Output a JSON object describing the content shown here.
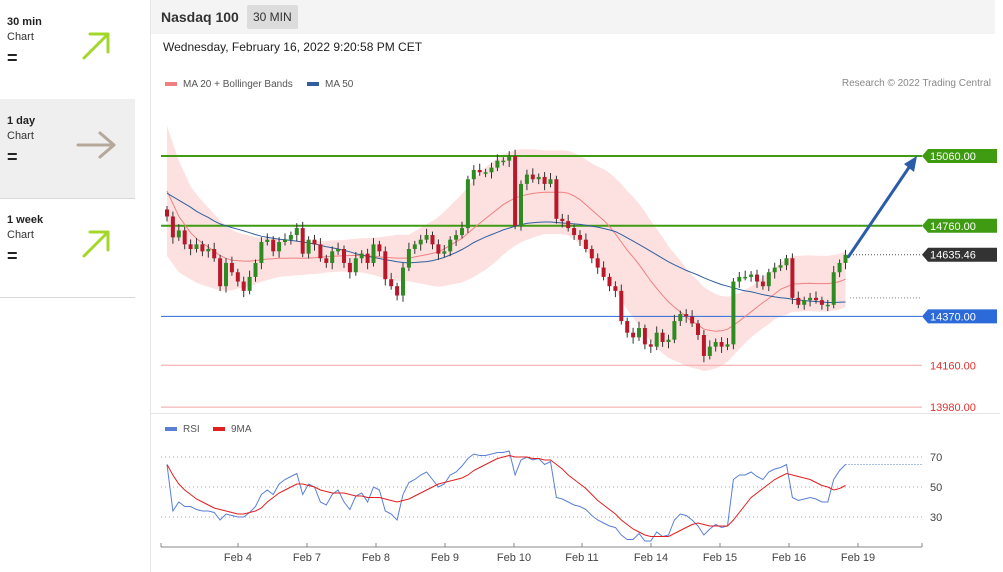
{
  "sidebar": {
    "items": [
      {
        "label": "30 min",
        "sub": "Chart",
        "eq": "=",
        "arrow": "up",
        "color": "#a3d82a",
        "selected": false
      },
      {
        "label": "1 day",
        "sub": "Chart",
        "eq": "=",
        "arrow": "right",
        "color": "#b5a89a",
        "selected": true
      },
      {
        "label": "1 week",
        "sub": "Chart",
        "eq": "=",
        "arrow": "up",
        "color": "#a3d82a",
        "selected": false
      }
    ]
  },
  "header": {
    "symbol": "Nasdaq 100",
    "period": "30 MIN"
  },
  "date_line": "Wednesday, February 16, 2022 9:20:58 PM CET",
  "legend_main": [
    {
      "label": "MA 20 + Bollinger Bands",
      "color": "#f08080"
    },
    {
      "label": "MA 50",
      "color": "#2f5f9e"
    }
  ],
  "copyright": "Research © 2022 Trading Central",
  "legend_rsi": [
    {
      "label": "RSI",
      "color": "#5a7fd6"
    },
    {
      "label": "9MA",
      "color": "#e02020"
    }
  ],
  "chart_data": [
    {
      "type": "candlestick",
      "x_ticks": [
        "Feb 4",
        "Feb 7",
        "Feb 8",
        "Feb 9",
        "Feb 10",
        "Feb 11",
        "Feb 14",
        "Feb 15",
        "Feb 16",
        "Feb 19"
      ],
      "levels": [
        {
          "value": 15060.0,
          "label": "15060.00",
          "color": "#3f9c12",
          "style": "resistance"
        },
        {
          "value": 14760.0,
          "label": "14760.00",
          "color": "#3f9c12",
          "style": "resistance"
        },
        {
          "value": 14635.46,
          "label": "14635.46",
          "color": "#333333",
          "style": "last"
        },
        {
          "value": 14370.0,
          "label": "14370.00",
          "color": "#2b6ad8",
          "style": "pivot"
        },
        {
          "value": 14160.0,
          "label": "14160.00",
          "color": "#e03030",
          "style": "support"
        },
        {
          "value": 13980.0,
          "label": "13980.00",
          "color": "#e03030",
          "style": "support"
        }
      ],
      "closes": [
        14800,
        14710,
        14740,
        14680,
        14660,
        14680,
        14650,
        14660,
        14620,
        14500,
        14600,
        14560,
        14520,
        14480,
        14540,
        14600,
        14690,
        14700,
        14650,
        14690,
        14700,
        14720,
        14750,
        14640,
        14700,
        14680,
        14620,
        14600,
        14650,
        14660,
        14600,
        14560,
        14620,
        14640,
        14600,
        14680,
        14650,
        14530,
        14500,
        14460,
        14580,
        14660,
        14680,
        14700,
        14720,
        14680,
        14640,
        14650,
        14700,
        14720,
        14750,
        14960,
        15000,
        14990,
        14990,
        15010,
        15040,
        15040,
        15060,
        14760,
        14940,
        14980,
        14960,
        14970,
        14940,
        14960,
        14790,
        14780,
        14750,
        14720,
        14700,
        14660,
        14620,
        14580,
        14540,
        14500,
        14480,
        14350,
        14300,
        14280,
        14320,
        14250,
        14240,
        14300,
        14260,
        14270,
        14350,
        14380,
        14370,
        14340,
        14290,
        14200,
        14240,
        14260,
        14240,
        14250,
        14520,
        14540,
        14540,
        14550,
        14520,
        14500,
        14560,
        14580,
        14590,
        14620,
        14450,
        14420,
        14440,
        14450,
        14440,
        14420,
        14420,
        14560,
        14600,
        14635.46
      ],
      "ma20": [
        14910,
        14855,
        14800,
        14765,
        14730,
        14705,
        14685,
        14668,
        14650,
        14632,
        14620,
        14612,
        14610,
        14608,
        14608,
        14610,
        14614,
        14617,
        14618,
        14620,
        14620,
        14621,
        14621,
        14620,
        14621,
        14622,
        14625,
        14627,
        14629,
        14630,
        14631,
        14632,
        14632,
        14633,
        14630,
        14628,
        14626,
        14624,
        14622,
        14621,
        14621,
        14621,
        14626,
        14631,
        14636,
        14641,
        14648,
        14661,
        14676,
        14691,
        14706,
        14728,
        14750,
        14771,
        14791,
        14811,
        14831,
        14851,
        14866,
        14879,
        14889,
        14894,
        14899,
        14902,
        14904,
        14904,
        14904,
        14904,
        14900,
        14888,
        14872,
        14850,
        14828,
        14805,
        14784,
        14757,
        14725,
        14690,
        14655,
        14625,
        14593,
        14558,
        14522,
        14491,
        14461,
        14432,
        14410,
        14390,
        14368,
        14348,
        14334,
        14315,
        14310,
        14306,
        14308,
        14315,
        14332,
        14350,
        14370,
        14390,
        14410,
        14430,
        14447,
        14467,
        14487,
        14497,
        14510,
        14510,
        14512,
        14513,
        14511,
        14511,
        14511,
        14514,
        14520,
        14530
      ],
      "ma50": [
        14900,
        14885,
        14870,
        14855,
        14840,
        14822,
        14808,
        14796,
        14780,
        14768,
        14760,
        14752,
        14745,
        14738,
        14730,
        14722,
        14715,
        14710,
        14706,
        14702,
        14700,
        14697,
        14694,
        14690,
        14686,
        14682,
        14676,
        14670,
        14665,
        14660,
        14654,
        14648,
        14640,
        14634,
        14628,
        14624,
        14619,
        14614,
        14610,
        14605,
        14602,
        14600,
        14602,
        14604,
        14606,
        14610,
        14616,
        14624,
        14634,
        14645,
        14658,
        14672,
        14688,
        14700,
        14712,
        14722,
        14732,
        14742,
        14750,
        14758,
        14765,
        14770,
        14773,
        14775,
        14776,
        14776,
        14774,
        14772,
        14770,
        14768,
        14766,
        14762,
        14758,
        14754,
        14748,
        14742,
        14735,
        14722,
        14708,
        14694,
        14680,
        14665,
        14650,
        14635,
        14620,
        14605,
        14592,
        14580,
        14568,
        14558,
        14548,
        14536,
        14526,
        14516,
        14507,
        14500,
        14493,
        14486,
        14480,
        14476,
        14470,
        14464,
        14459,
        14454,
        14450,
        14448,
        14444,
        14441,
        14438,
        14436,
        14434,
        14432,
        14430,
        14430,
        14431,
        14432
      ],
      "bb_width": [
        280,
        260,
        240,
        220,
        200,
        190,
        180,
        170,
        160,
        150,
        140,
        130,
        120,
        115,
        110,
        100,
        95,
        90,
        85,
        80,
        78,
        76,
        74,
        72,
        70,
        70,
        70,
        68,
        68,
        68,
        68,
        70,
        72,
        74,
        76,
        80,
        85,
        90,
        95,
        100,
        100,
        100,
        110,
        120,
        130,
        140,
        150,
        160,
        170,
        180,
        190,
        200,
        210,
        215,
        220,
        220,
        220,
        215,
        210,
        205,
        200,
        195,
        190,
        185,
        180,
        180,
        180,
        180,
        182,
        185,
        190,
        195,
        200,
        210,
        220,
        230,
        240,
        250,
        255,
        260,
        262,
        262,
        260,
        255,
        250,
        240,
        230,
        220,
        210,
        200,
        190,
        180,
        170,
        160,
        150,
        140,
        130,
        120,
        115,
        110,
        110,
        110,
        110,
        110,
        115,
        120,
        120,
        120,
        120,
        120,
        120,
        120,
        120,
        120,
        120,
        120
      ]
    },
    {
      "type": "line",
      "name": "RSI",
      "y_ticks": [
        70,
        50,
        30
      ],
      "rsi": [
        65,
        34,
        40,
        37,
        37,
        35,
        34,
        34,
        33,
        28,
        32,
        31,
        30,
        30,
        33,
        37,
        45,
        48,
        45,
        52,
        55,
        57,
        59,
        45,
        52,
        50,
        40,
        38,
        45,
        48,
        40,
        35,
        44,
        46,
        40,
        50,
        48,
        34,
        32,
        28,
        45,
        53,
        55,
        58,
        60,
        55,
        50,
        52,
        58,
        60,
        64,
        69,
        72,
        71,
        71,
        72,
        73,
        73,
        74,
        58,
        68,
        70,
        68,
        69,
        65,
        67,
        43,
        42,
        40,
        38,
        37,
        35,
        31,
        28,
        26,
        24,
        23,
        18,
        15,
        15,
        19,
        14,
        14,
        20,
        17,
        18,
        28,
        32,
        31,
        28,
        24,
        18,
        22,
        25,
        23,
        24,
        55,
        58,
        58,
        60,
        57,
        55,
        60,
        62,
        63,
        65,
        43,
        41,
        42,
        43,
        42,
        40,
        40,
        55,
        61,
        65
      ],
      "ma9": [
        65,
        58,
        52,
        48,
        45,
        42,
        40,
        38,
        36,
        35,
        34,
        33,
        32,
        32,
        33,
        34,
        36,
        40,
        43,
        46,
        48,
        50,
        52,
        52,
        51,
        50,
        48,
        47,
        46,
        46,
        46,
        45,
        44,
        44,
        43,
        43,
        43,
        42,
        41,
        40,
        41,
        42,
        44,
        46,
        48,
        50,
        52,
        53,
        54,
        55,
        56,
        58,
        61,
        63,
        65,
        67,
        69,
        70,
        71,
        70,
        70,
        70,
        69,
        69,
        68,
        68,
        65,
        62,
        58,
        55,
        52,
        49,
        45,
        41,
        38,
        35,
        32,
        28,
        25,
        22,
        20,
        18,
        17,
        17,
        17,
        17,
        19,
        21,
        23,
        25,
        26,
        25,
        24,
        24,
        24,
        24,
        28,
        33,
        38,
        43,
        46,
        49,
        52,
        55,
        57,
        59,
        58,
        57,
        56,
        55,
        53,
        51,
        50,
        48,
        49,
        51
      ]
    }
  ]
}
